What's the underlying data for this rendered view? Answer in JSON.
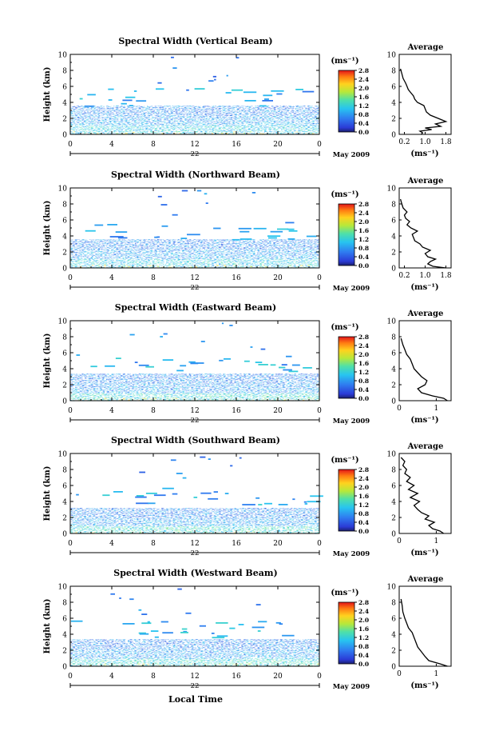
{
  "figure": {
    "xlabel_bottom": "Local Time",
    "date_label": "May 2009",
    "colorbar_unit": "(ms⁻¹)",
    "avg_title": "Average",
    "avg_xlabel": "(ms⁻¹)",
    "ylabel": "Height (km)"
  },
  "chart_data": [
    {
      "type": "heatmap",
      "title": "Spectral Width (Vertical Beam)",
      "ylabel": "Height (km)",
      "x_ticks": [
        "0",
        "4",
        "8",
        "12",
        "16",
        "20",
        "0"
      ],
      "y_ticks": [
        "0",
        "2",
        "4",
        "6",
        "8",
        "10"
      ],
      "day_label": "22",
      "date_label": "May 2009",
      "xlim": [
        0,
        24
      ],
      "ylim": [
        0,
        10
      ],
      "colorbar": {
        "unit": "(ms⁻¹)",
        "ticks": [
          "0.0",
          "0.4",
          "0.8",
          "1.2",
          "1.6",
          "2.0",
          "2.4",
          "2.8"
        ],
        "range": [
          0,
          2.8
        ]
      },
      "layers": [
        {
          "h0": 0.0,
          "h1": 1.2,
          "level": 0.4
        },
        {
          "h0": 1.2,
          "h1": 2.4,
          "level": 0.3
        },
        {
          "h0": 2.4,
          "h1": 3.6,
          "level": 0.25
        }
      ],
      "average": {
        "title": "Average",
        "xlabel": "(ms⁻¹)",
        "x_ticks": [
          "0.2",
          "1.0",
          "1.8"
        ],
        "xlim": [
          0,
          2.0
        ],
        "x": [
          0.85,
          0.9,
          0.8,
          1.25,
          1.0,
          1.6,
          1.4,
          1.8,
          1.5,
          1.2,
          1.05,
          1.0,
          0.95,
          0.7,
          0.6,
          0.55,
          0.45,
          0.35,
          0.3,
          0.25,
          0.15,
          0.1,
          0.05
        ],
        "y": [
          0.0,
          0.2,
          0.4,
          0.6,
          0.8,
          1.0,
          1.3,
          1.6,
          2.0,
          2.4,
          2.8,
          3.2,
          3.6,
          4.0,
          4.4,
          4.8,
          5.2,
          5.6,
          6.0,
          6.4,
          7.0,
          7.6,
          8.2
        ]
      }
    },
    {
      "type": "heatmap",
      "title": "Spectral Width (Northward Beam)",
      "ylabel": "Height (km)",
      "x_ticks": [
        "0",
        "4",
        "8",
        "12",
        "16",
        "20",
        "0"
      ],
      "y_ticks": [
        "0",
        "2",
        "4",
        "6",
        "8",
        "10"
      ],
      "day_label": "22",
      "date_label": "May 2009",
      "xlim": [
        0,
        24
      ],
      "ylim": [
        0,
        10
      ],
      "colorbar": {
        "unit": "(ms⁻¹)",
        "ticks": [
          "0.0",
          "0.4",
          "0.8",
          "1.2",
          "1.6",
          "2.0",
          "2.4",
          "2.8"
        ],
        "range": [
          0,
          2.8
        ]
      },
      "layers": [
        {
          "h0": 0.0,
          "h1": 1.2,
          "level": 0.4
        },
        {
          "h0": 1.2,
          "h1": 2.4,
          "level": 0.3
        },
        {
          "h0": 2.4,
          "h1": 3.6,
          "level": 0.25
        }
      ],
      "average": {
        "title": "Average",
        "xlabel": "(ms⁻¹)",
        "x_ticks": [
          "0.2",
          "1.0",
          "1.8"
        ],
        "xlim": [
          0,
          2.0
        ],
        "x": [
          1.8,
          1.3,
          1.1,
          1.2,
          1.4,
          1.1,
          1.0,
          1.2,
          0.9,
          0.8,
          0.6,
          0.55,
          0.5,
          0.7,
          0.45,
          0.3,
          0.4,
          0.25,
          0.2,
          0.3,
          0.15,
          0.1,
          0.05
        ],
        "y": [
          0.0,
          0.2,
          0.5,
          0.8,
          1.1,
          1.4,
          1.8,
          2.2,
          2.6,
          3.0,
          3.4,
          3.8,
          4.2,
          4.6,
          5.0,
          5.4,
          5.8,
          6.2,
          6.6,
          7.0,
          7.5,
          8.0,
          8.6
        ]
      }
    },
    {
      "type": "heatmap",
      "title": "Spectral Width (Eastward Beam)",
      "ylabel": "Height (km)",
      "x_ticks": [
        "0",
        "4",
        "8",
        "12",
        "16",
        "20",
        "0"
      ],
      "y_ticks": [
        "0",
        "2",
        "4",
        "6",
        "8",
        "10"
      ],
      "day_label": "22",
      "date_label": "May 2009",
      "xlim": [
        0,
        24
      ],
      "ylim": [
        0,
        10
      ],
      "colorbar": {
        "unit": "(ms⁻¹)",
        "ticks": [
          "0.0",
          "0.4",
          "0.8",
          "1.2",
          "1.6",
          "2.0",
          "2.4",
          "2.8"
        ],
        "range": [
          0,
          2.8
        ]
      },
      "layers": [
        {
          "h0": 0.0,
          "h1": 1.0,
          "level": 0.45
        },
        {
          "h0": 1.0,
          "h1": 2.2,
          "level": 0.3
        },
        {
          "h0": 2.2,
          "h1": 3.4,
          "level": 0.25
        }
      ],
      "average": {
        "title": "Average",
        "xlabel": "(ms⁻¹)",
        "x_ticks": [
          "0",
          "1"
        ],
        "xlim": [
          0,
          1.4
        ],
        "x": [
          1.3,
          1.2,
          0.9,
          0.6,
          0.5,
          0.7,
          0.75,
          0.6,
          0.5,
          0.4,
          0.35,
          0.3,
          0.2,
          0.15,
          0.1,
          0.05
        ],
        "y": [
          0.0,
          0.3,
          0.6,
          1.0,
          1.5,
          2.0,
          2.5,
          3.0,
          3.5,
          4.0,
          4.6,
          5.2,
          5.8,
          6.4,
          7.0,
          7.8
        ]
      }
    },
    {
      "type": "heatmap",
      "title": "Spectral Width (Southward Beam)",
      "ylabel": "Height (km)",
      "x_ticks": [
        "0",
        "4",
        "8",
        "12",
        "16",
        "20",
        "0"
      ],
      "y_ticks": [
        "0",
        "2",
        "4",
        "6",
        "8",
        "10"
      ],
      "day_label": "22",
      "date_label": "May 2009",
      "xlim": [
        0,
        24
      ],
      "ylim": [
        0,
        10
      ],
      "colorbar": {
        "unit": "(ms⁻¹)",
        "ticks": [
          "0.0",
          "0.4",
          "0.8",
          "1.2",
          "1.6",
          "2.0",
          "2.4",
          "2.8"
        ],
        "range": [
          0,
          2.8
        ]
      },
      "layers": [
        {
          "h0": 0.0,
          "h1": 1.0,
          "level": 0.45
        },
        {
          "h0": 1.0,
          "h1": 2.0,
          "level": 0.3
        },
        {
          "h0": 2.0,
          "h1": 3.2,
          "level": 0.25
        }
      ],
      "average": {
        "title": "Average",
        "xlabel": "(ms⁻¹)",
        "x_ticks": [
          "0",
          "1"
        ],
        "xlim": [
          0,
          1.4
        ],
        "x": [
          1.2,
          1.1,
          0.9,
          0.8,
          0.95,
          0.7,
          0.8,
          0.6,
          0.5,
          0.4,
          0.55,
          0.3,
          0.5,
          0.25,
          0.4,
          0.2,
          0.3,
          0.15,
          0.2,
          0.1,
          0.15,
          0.05
        ],
        "y": [
          0.0,
          0.3,
          0.6,
          1.0,
          1.4,
          1.8,
          2.2,
          2.6,
          3.0,
          3.5,
          4.0,
          4.5,
          5.0,
          5.5,
          6.0,
          6.5,
          7.0,
          7.5,
          8.0,
          8.5,
          9.0,
          9.5
        ]
      }
    },
    {
      "type": "heatmap",
      "title": "Spectral Width (Westward Beam)",
      "ylabel": "Height (km)",
      "x_ticks": [
        "0",
        "4",
        "8",
        "12",
        "16",
        "20",
        "0"
      ],
      "y_ticks": [
        "0",
        "2",
        "4",
        "6",
        "8",
        "10"
      ],
      "day_label": "22",
      "date_label": "May 2009",
      "xlabel": "Local Time",
      "xlim": [
        0,
        24
      ],
      "ylim": [
        0,
        10
      ],
      "colorbar": {
        "unit": "(ms⁻¹)",
        "ticks": [
          "0.0",
          "0.4",
          "0.8",
          "1.2",
          "1.6",
          "2.0",
          "2.4",
          "2.8"
        ],
        "range": [
          0,
          2.8
        ]
      },
      "layers": [
        {
          "h0": 0.0,
          "h1": 1.0,
          "level": 0.45
        },
        {
          "h0": 1.0,
          "h1": 2.2,
          "level": 0.3
        },
        {
          "h0": 2.2,
          "h1": 3.4,
          "level": 0.25
        }
      ],
      "average": {
        "title": "Average",
        "xlabel": "(ms⁻¹)",
        "x_ticks": [
          "0",
          "1"
        ],
        "xlim": [
          0,
          1.4
        ],
        "x": [
          1.3,
          1.1,
          0.8,
          0.7,
          0.6,
          0.5,
          0.45,
          0.4,
          0.35,
          0.25,
          0.2,
          0.15,
          0.1,
          0.08,
          0.05
        ],
        "y": [
          0.0,
          0.3,
          0.7,
          1.2,
          1.8,
          2.4,
          3.0,
          3.6,
          4.2,
          4.8,
          5.4,
          6.0,
          6.8,
          7.6,
          8.4
        ]
      }
    }
  ]
}
